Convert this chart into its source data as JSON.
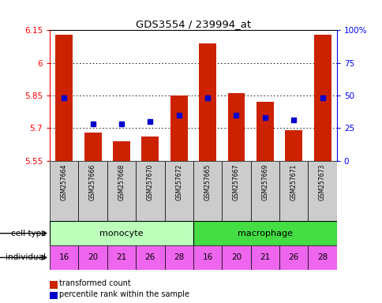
{
  "title": "GDS3554 / 239994_at",
  "samples": [
    "GSM257664",
    "GSM257666",
    "GSM257668",
    "GSM257670",
    "GSM257672",
    "GSM257665",
    "GSM257667",
    "GSM257669",
    "GSM257671",
    "GSM257673"
  ],
  "bar_values": [
    6.13,
    5.68,
    5.64,
    5.66,
    5.85,
    6.09,
    5.86,
    5.82,
    5.69,
    6.13
  ],
  "percentile_values": [
    48,
    28,
    28,
    30,
    35,
    48,
    35,
    33,
    31,
    48
  ],
  "ylim_left": [
    5.55,
    6.15
  ],
  "ylim_right": [
    0,
    100
  ],
  "yticks_left": [
    5.55,
    5.7,
    5.85,
    6.0,
    6.15
  ],
  "ytick_labels_left": [
    "5.55",
    "5.7",
    "5.85",
    "6",
    "6.15"
  ],
  "yticks_right": [
    0,
    25,
    50,
    75,
    100
  ],
  "ytick_labels_right": [
    "0",
    "25",
    "50",
    "75",
    "100%"
  ],
  "grid_values": [
    5.7,
    5.85,
    6.0
  ],
  "bar_color": "#cc2200",
  "dot_color": "#0000cc",
  "bar_bottom": 5.55,
  "cell_types": [
    "monocyte",
    "macrophage"
  ],
  "cell_type_colors": [
    "#bbffbb",
    "#44dd44"
  ],
  "individuals": [
    "16",
    "20",
    "21",
    "26",
    "28",
    "16",
    "20",
    "21",
    "26",
    "28"
  ],
  "individual_color": "#ee66ee",
  "sample_bg_color": "#cccccc",
  "legend_red": "transformed count",
  "legend_blue": "percentile rank within the sample"
}
